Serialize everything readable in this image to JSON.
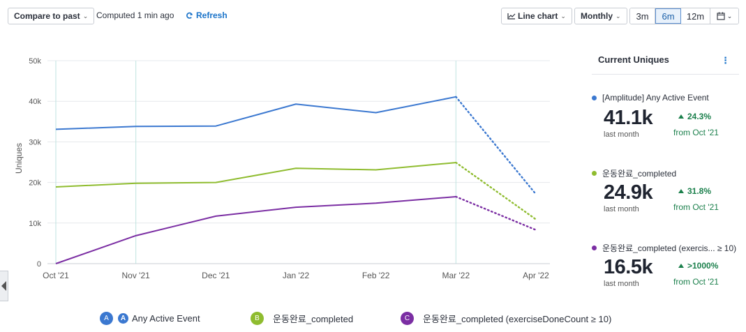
{
  "toolbar": {
    "compare_label": "Compare to past",
    "computed_text": "Computed 1 min ago",
    "refresh_label": "Refresh",
    "chart_type_label": "Line chart",
    "interval_label": "Monthly",
    "ranges": [
      "3m",
      "6m",
      "12m"
    ],
    "active_range": "6m",
    "calendar_icon": "calendar-icon"
  },
  "panel": {
    "title": "Current Uniques",
    "metrics": [
      {
        "name": "[Amplitude] Any Active Event",
        "value": "41.1k",
        "sub": "last month",
        "change": "24.3%",
        "from": "from Oct '21",
        "color": "#3b78d0"
      },
      {
        "name": "운동완료_completed",
        "value": "24.9k",
        "sub": "last month",
        "change": "31.8%",
        "from": "from Oct '21",
        "color": "#8fbc2f"
      },
      {
        "name": "운동완료_completed (exercis... ≥ 10)",
        "value": "16.5k",
        "sub": "last month",
        "change": ">1000%",
        "from": "from Oct '21",
        "color": "#7b2ea3"
      }
    ]
  },
  "legend": [
    {
      "badge": "A",
      "label": "Any Active Event",
      "color": "#3b78d0",
      "icon": "amplitude-icon",
      "icon_char": "A"
    },
    {
      "badge": "B",
      "label": "운동완료_completed",
      "color": "#8fbc2f"
    },
    {
      "badge": "C",
      "label": "운동완료_completed (exerciseDoneCount ≥ 10)",
      "color": "#7b2ea3"
    }
  ],
  "chart_data": {
    "type": "line",
    "ylabel": "Uniques",
    "xlabel": "",
    "ylim": [
      0,
      50000
    ],
    "y_ticks": [
      0,
      10000,
      20000,
      30000,
      40000,
      50000
    ],
    "y_tick_labels": [
      "0",
      "10k",
      "20k",
      "30k",
      "40k",
      "50k"
    ],
    "categories": [
      "Oct '21",
      "Nov '21",
      "Dec '21",
      "Jan '22",
      "Feb '22",
      "Mar '22",
      "Apr '22"
    ],
    "grid": true,
    "highlight_columns": [
      "Oct '21",
      "Nov '21",
      "Mar '22"
    ],
    "incomplete_last_period": true,
    "series": [
      {
        "name": "[Amplitude] Any Active Event",
        "color": "#3b78d0",
        "values": [
          33100,
          33800,
          33900,
          39300,
          37200,
          41100,
          17100
        ]
      },
      {
        "name": "운동완료_completed",
        "color": "#8fbc2f",
        "values": [
          18900,
          19800,
          20000,
          23500,
          23100,
          24900,
          10900
        ]
      },
      {
        "name": "운동완료_completed (exerciseDoneCount ≥ 10)",
        "color": "#7b2ea3",
        "values": [
          0,
          6900,
          11700,
          13900,
          14900,
          16500,
          8300
        ]
      }
    ]
  }
}
